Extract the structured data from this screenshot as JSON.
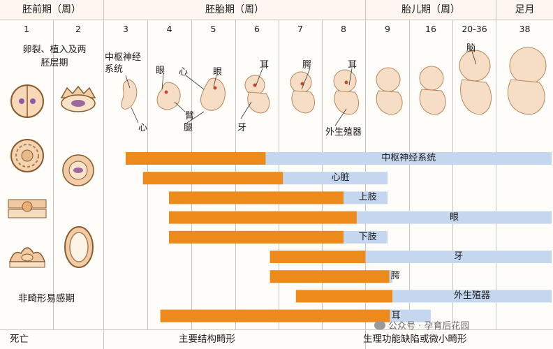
{
  "header": {
    "pre_embryonic": "胚前期（周）",
    "embryonic": "胚胎期（周）",
    "fetal": "胎儿期（周）",
    "term": "足月"
  },
  "weeks": [
    "1",
    "2",
    "3",
    "4",
    "5",
    "6",
    "7",
    "8",
    "9",
    "16",
    "20-36",
    "38"
  ],
  "left_texts": {
    "stage_label": "卵裂、植入及两胚层期",
    "stage_line1": "卵裂、植入及两",
    "stage_line2": "胚层期",
    "non_teratogenic": "非畸形易感期"
  },
  "embryo_labels": {
    "cns": "中枢神经系统",
    "cns_line1": "中枢神经",
    "cns_line2": "系统",
    "heart_wk3": "心",
    "eye_wk4": "眼",
    "heart_wk5": "心",
    "eye_wk5": "眼",
    "arm": "臂",
    "leg": "腿",
    "ear_wk6": "耳",
    "teeth": "牙",
    "palate": "腭",
    "ear_wk8": "耳",
    "genitalia": "外生殖器",
    "brain": "脑"
  },
  "chart_data": {
    "type": "gantt",
    "columns": [
      "1",
      "2",
      "3",
      "4",
      "5",
      "6",
      "7",
      "8",
      "9",
      "16",
      "20-36",
      "38"
    ],
    "legend": {
      "orange": "主要结构畸形",
      "blue": "生理功能缺陷或微小畸形"
    },
    "rows": [
      {
        "organ": "中枢神经系统",
        "orange": [
          3,
          6.2
        ],
        "blue": [
          6.2,
          38
        ]
      },
      {
        "organ": "心脏",
        "orange": [
          3.4,
          6.6
        ],
        "blue": [
          6.6,
          9
        ]
      },
      {
        "organ": "上肢",
        "orange": [
          4,
          8
        ],
        "blue": [
          8,
          9
        ]
      },
      {
        "organ": "眼",
        "orange": [
          4,
          8.3
        ],
        "blue": [
          8.3,
          38
        ]
      },
      {
        "organ": "下肢",
        "orange": [
          4,
          8
        ],
        "blue": [
          8,
          9
        ]
      },
      {
        "organ": "牙",
        "orange": [
          6.3,
          8.5
        ],
        "blue": [
          8.5,
          38
        ]
      },
      {
        "organ": "腭",
        "orange": [
          6.3,
          9.3
        ],
        "blue": [
          9.3,
          9.8
        ]
      },
      {
        "organ": "外生殖器",
        "orange": [
          6.9,
          9.8
        ],
        "blue": [
          9.8,
          38
        ]
      },
      {
        "organ": "耳",
        "orange": [
          3.8,
          9.4
        ],
        "blue": [
          9.4,
          16
        ]
      }
    ],
    "colors": {
      "orange": "#ec8b1c",
      "blue": "#c5d7ef"
    }
  },
  "footer": {
    "death": "死亡",
    "major": "主要结构畸形",
    "minor": "生理功能缺陷或微小畸形"
  },
  "watermark": "公众号 · 孕育后花园"
}
